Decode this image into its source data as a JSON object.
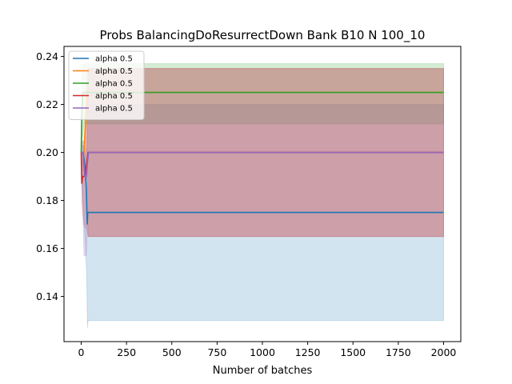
{
  "chart_data": {
    "type": "line",
    "title": "Probs BalancingDoResurrectDown Bank B10 N 100_10",
    "xlabel": "Number of batches",
    "ylabel": "",
    "xlim": [
      -95,
      2095
    ],
    "ylim": [
      0.1212,
      0.2442
    ],
    "xticks": [
      0,
      250,
      500,
      750,
      1000,
      1250,
      1500,
      1750,
      2000
    ],
    "yticks": [
      0.14,
      0.16,
      0.18,
      0.2,
      0.22,
      0.24
    ],
    "ytick_labels": [
      "0.14",
      "0.16",
      "0.18",
      "0.20",
      "0.22",
      "0.24"
    ],
    "grid": false,
    "legend_position": "top-left",
    "series": [
      {
        "name": "alpha 0.5",
        "color": "#1f77b4",
        "points": [
          [
            0,
            0.2
          ],
          [
            10,
            0.2
          ],
          [
            20,
            0.195
          ],
          [
            28,
            0.185
          ],
          [
            33,
            0.17
          ],
          [
            36,
            0.175
          ],
          [
            2000,
            0.175
          ]
        ],
        "band": [
          [
            0,
            0.203,
            0.197
          ],
          [
            10,
            0.203,
            0.18
          ],
          [
            20,
            0.2,
            0.165
          ],
          [
            30,
            0.195,
            0.15
          ],
          [
            35,
            0.225,
            0.127
          ],
          [
            38,
            0.22,
            0.13
          ],
          [
            2000,
            0.22,
            0.13
          ]
        ]
      },
      {
        "name": "alpha 0.5",
        "color": "#ff7f0e",
        "points": [
          [
            0,
            0.2
          ],
          [
            15,
            0.2
          ],
          [
            25,
            0.213
          ],
          [
            33,
            0.226
          ],
          [
            38,
            0.225
          ],
          [
            2000,
            0.225
          ]
        ],
        "band": [
          [
            0,
            0.203,
            0.197
          ],
          [
            15,
            0.205,
            0.19
          ],
          [
            25,
            0.225,
            0.195
          ],
          [
            33,
            0.232,
            0.2
          ],
          [
            38,
            0.235,
            0.165
          ],
          [
            2000,
            0.235,
            0.165
          ]
        ]
      },
      {
        "name": "alpha 0.5",
        "color": "#2ca02c",
        "points": [
          [
            0,
            0.2
          ],
          [
            3,
            0.215
          ],
          [
            8,
            0.224
          ],
          [
            15,
            0.225
          ],
          [
            2000,
            0.225
          ]
        ],
        "band": [
          [
            0,
            0.203,
            0.197
          ],
          [
            5,
            0.232,
            0.205
          ],
          [
            15,
            0.237,
            0.212
          ],
          [
            2000,
            0.237,
            0.212
          ]
        ]
      },
      {
        "name": "alpha 0.5",
        "color": "#d62728",
        "points": [
          [
            0,
            0.2
          ],
          [
            3,
            0.187
          ],
          [
            8,
            0.19
          ],
          [
            20,
            0.19
          ],
          [
            30,
            0.195
          ],
          [
            38,
            0.2
          ],
          [
            2000,
            0.2
          ]
        ],
        "band": [
          [
            0,
            0.203,
            0.197
          ],
          [
            5,
            0.195,
            0.178
          ],
          [
            15,
            0.2,
            0.17
          ],
          [
            30,
            0.222,
            0.168
          ],
          [
            38,
            0.235,
            0.165
          ],
          [
            2000,
            0.235,
            0.165
          ]
        ]
      },
      {
        "name": "alpha 0.5",
        "color": "#9467bd",
        "points": [
          [
            0,
            0.2
          ],
          [
            10,
            0.2
          ],
          [
            20,
            0.19
          ],
          [
            28,
            0.19
          ],
          [
            35,
            0.196
          ],
          [
            40,
            0.2
          ],
          [
            2000,
            0.2
          ]
        ],
        "band": [
          [
            0,
            0.203,
            0.197
          ],
          [
            8,
            0.205,
            0.178
          ],
          [
            15,
            0.204,
            0.157
          ],
          [
            28,
            0.2,
            0.157
          ],
          [
            35,
            0.212,
            0.17
          ],
          [
            40,
            0.235,
            0.165
          ],
          [
            2000,
            0.235,
            0.165
          ]
        ]
      }
    ]
  }
}
